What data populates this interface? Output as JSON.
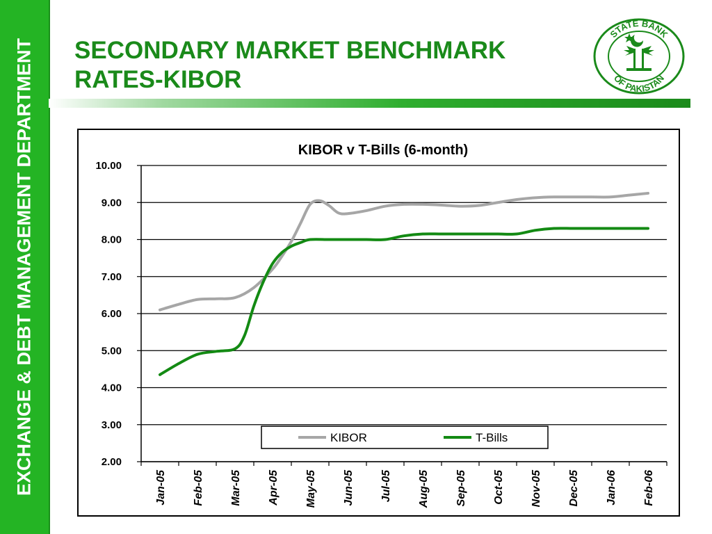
{
  "sidebar": {
    "text": "EXCHANGE & DEBT MANAGEMENT DEPARTMENT"
  },
  "header": {
    "title_line1": "SECONDARY MARKET BENCHMARK",
    "title_line2": "RATES-KIBOR"
  },
  "logo": {
    "icon": "state-bank-of-pakistan-seal-icon",
    "text": "STATE BANK OF PAKISTAN",
    "color": "#1a8a1a"
  },
  "colors": {
    "sidebar_bg": "#24b424",
    "title": "#1a8a1a",
    "kibor_line": "#a6a6a6",
    "tbills_line": "#138a13"
  },
  "chart_data": {
    "type": "line",
    "title": "KIBOR v T-Bills (6-month)",
    "xlabel": "",
    "ylabel": "",
    "categories": [
      "Jan-05",
      "Feb-05",
      "Mar-05",
      "Apr-05",
      "May-05",
      "Jun-05",
      "Jul-05",
      "Aug-05",
      "Sep-05",
      "Oct-05",
      "Nov-05",
      "Dec-05",
      "Jan-06",
      "Feb-06"
    ],
    "yticks": [
      "2.00",
      "3.00",
      "4.00",
      "5.00",
      "6.00",
      "7.00",
      "8.00",
      "9.00",
      "10.00"
    ],
    "ylim": [
      2,
      10
    ],
    "grid": true,
    "legend": "bottom-inside",
    "series": [
      {
        "name": "KIBOR",
        "x": [
          0,
          0.5,
          1,
          1.5,
          2,
          2.5,
          3,
          3.25,
          3.5,
          3.75,
          4,
          4.25,
          4.5,
          4.75,
          5,
          5.5,
          6,
          6.5,
          7,
          7.5,
          8,
          8.5,
          9,
          9.5,
          10,
          10.5,
          11,
          11.5,
          12,
          12.5,
          13
        ],
        "values": [
          6.1,
          6.25,
          6.38,
          6.4,
          6.43,
          6.7,
          7.2,
          7.55,
          7.95,
          8.45,
          8.95,
          9.05,
          8.92,
          8.72,
          8.7,
          8.78,
          8.9,
          8.95,
          8.95,
          8.93,
          8.9,
          8.92,
          9.0,
          9.08,
          9.13,
          9.15,
          9.15,
          9.15,
          9.15,
          9.2,
          9.25
        ]
      },
      {
        "name": "T-Bills",
        "x": [
          0,
          0.5,
          1,
          1.5,
          2,
          2.25,
          2.5,
          2.75,
          3,
          3.25,
          3.5,
          3.75,
          4,
          4.5,
          5,
          5.5,
          6,
          6.5,
          7,
          7.5,
          8,
          8.5,
          9,
          9.5,
          10,
          10.5,
          11,
          11.5,
          12,
          12.5,
          13
        ],
        "values": [
          4.35,
          4.65,
          4.9,
          4.98,
          5.05,
          5.4,
          6.2,
          6.85,
          7.35,
          7.65,
          7.82,
          7.92,
          8.0,
          8.0,
          8.0,
          8.0,
          8.0,
          8.1,
          8.15,
          8.15,
          8.15,
          8.15,
          8.15,
          8.15,
          8.25,
          8.3,
          8.3,
          8.3,
          8.3,
          8.3,
          8.3
        ]
      }
    ]
  }
}
